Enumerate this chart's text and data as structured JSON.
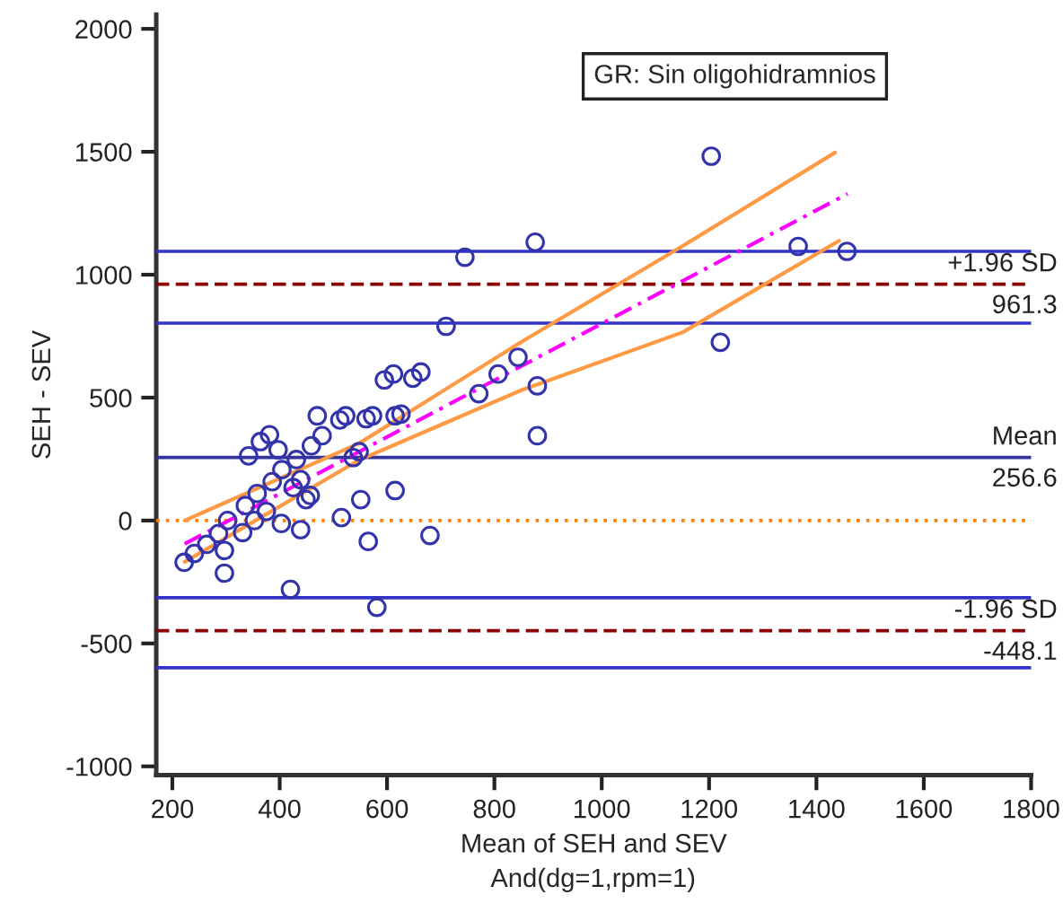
{
  "chart_data": {
    "type": "scatter",
    "title": "GR: Sin oligohidramnios",
    "xlabel": "Mean of SEH and SEV",
    "ylabel": "SEH - SEV",
    "annotations": [
      "And(dg=1,rpm=1)",
      "961.3",
      "256.6",
      "-448.1"
    ],
    "xlim": [
      170,
      1800
    ],
    "ylim": [
      -1036,
      2058
    ],
    "xticks": [
      200,
      400,
      600,
      800,
      1000,
      1200,
      1400,
      1600,
      1800
    ],
    "yticks": [
      -1000,
      -500,
      0,
      500,
      1000,
      1500,
      2000
    ],
    "grid": false,
    "legend": false,
    "series": [
      {
        "type": "scatter",
        "color": "#3333aa",
        "marker": "circle",
        "x": [
          222,
          241,
          264,
          286,
          303,
          297,
          297,
          331,
          336,
          353,
          358,
          375,
          386,
          342,
          364,
          381,
          397,
          404,
          403,
          420,
          431,
          439,
          439,
          425,
          449,
          457,
          459,
          479,
          470,
          512,
          523,
          515,
          537,
          548,
          551,
          565,
          561,
          573,
          581,
          595,
          612,
          615,
          615,
          626,
          648,
          663,
          680,
          771,
          807,
          844,
          880,
          880,
          710,
          745,
          876,
          1366,
          1457,
          1221,
          1204
        ],
        "values": [
          -170,
          -134,
          -97,
          -53,
          0,
          -122,
          -214,
          -49,
          61,
          0,
          110,
          37,
          158,
          263,
          321,
          349,
          288,
          207,
          -12,
          -280,
          248,
          166,
          -37,
          134,
          85,
          102,
          304,
          345,
          426,
          409,
          426,
          12,
          256,
          280,
          85,
          -85,
          414,
          426,
          -353,
          572,
          596,
          122,
          426,
          433,
          579,
          604,
          -61,
          516,
          596,
          664,
          548,
          345,
          790,
          1071,
          1132,
          1115,
          1095,
          725,
          1482
        ]
      },
      {
        "type": "line",
        "color": "#ff00ff",
        "line_style": "dashdot",
        "marker": "none",
        "x": [
          223,
          1458
        ],
        "values": [
          -95,
          1329
        ]
      },
      {
        "type": "line",
        "color": "#ff9944",
        "line_style": "solid",
        "marker": "none",
        "x": [
          223,
          548,
          850,
          1151,
          1435
        ],
        "values": [
          0,
          314,
          726,
          1117,
          1497
        ]
      },
      {
        "type": "line",
        "color": "#ff9944",
        "line_style": "solid",
        "marker": "none",
        "x": [
          223,
          548,
          850,
          1151,
          1442
        ],
        "values": [
          -168,
          246,
          530,
          766,
          1138
        ]
      }
    ],
    "ref_lines": [
      {
        "axis": "y",
        "value": 1095,
        "color": "#3333cc",
        "line_style": "solid"
      },
      {
        "axis": "y",
        "value": 961.3,
        "label": "+1.96 SD",
        "color": "#8b0000",
        "line_style": "dashed"
      },
      {
        "axis": "y",
        "value": 803,
        "color": "#3333cc",
        "line_style": "solid"
      },
      {
        "axis": "y",
        "value": 256.6,
        "label": "Mean",
        "color": "#333399",
        "line_style": "solid"
      },
      {
        "axis": "y",
        "value": 0,
        "color": "#ff8000",
        "line_style": "dotted"
      },
      {
        "axis": "y",
        "value": -314,
        "color": "#3333cc",
        "line_style": "solid"
      },
      {
        "axis": "y",
        "value": -448.1,
        "label": "-1.96 SD",
        "color": "#8b0000",
        "line_style": "dashed"
      },
      {
        "axis": "y",
        "value": -599,
        "color": "#3333cc",
        "line_style": "solid"
      }
    ]
  }
}
